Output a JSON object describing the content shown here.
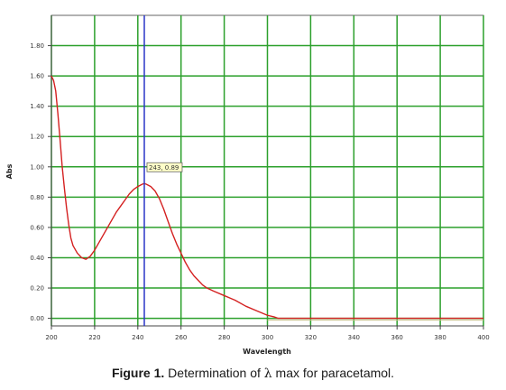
{
  "chart_data": {
    "type": "line",
    "xlabel": "Wavelength",
    "ylabel": "Abs",
    "xlim": [
      200,
      400
    ],
    "ylim": [
      -0.05,
      2.0
    ],
    "x_ticks": [
      "200",
      "220",
      "240",
      "260",
      "280",
      "300",
      "320",
      "340",
      "360",
      "380",
      "400"
    ],
    "y_ticks": [
      "0.00",
      "0.20",
      "0.40",
      "0.60",
      "0.80",
      "1.00",
      "1.20",
      "1.40",
      "1.60",
      "1.80"
    ],
    "grid": true,
    "marker_line_x": 243,
    "annotation": "243, 0.89",
    "series": [
      {
        "color": "#d42020",
        "points": [
          [
            200,
            1.6
          ],
          [
            201,
            1.57
          ],
          [
            202,
            1.5
          ],
          [
            203,
            1.35
          ],
          [
            204,
            1.18
          ],
          [
            205,
            1.0
          ],
          [
            206,
            0.86
          ],
          [
            207,
            0.73
          ],
          [
            208,
            0.62
          ],
          [
            209,
            0.53
          ],
          [
            210,
            0.48
          ],
          [
            212,
            0.43
          ],
          [
            214,
            0.4
          ],
          [
            216,
            0.39
          ],
          [
            218,
            0.41
          ],
          [
            220,
            0.45
          ],
          [
            222,
            0.5
          ],
          [
            224,
            0.55
          ],
          [
            226,
            0.6
          ],
          [
            228,
            0.65
          ],
          [
            230,
            0.7
          ],
          [
            232,
            0.74
          ],
          [
            234,
            0.78
          ],
          [
            236,
            0.82
          ],
          [
            238,
            0.85
          ],
          [
            240,
            0.87
          ],
          [
            242,
            0.885
          ],
          [
            243,
            0.89
          ],
          [
            244,
            0.885
          ],
          [
            246,
            0.87
          ],
          [
            248,
            0.84
          ],
          [
            250,
            0.79
          ],
          [
            252,
            0.72
          ],
          [
            254,
            0.64
          ],
          [
            256,
            0.56
          ],
          [
            258,
            0.49
          ],
          [
            260,
            0.43
          ],
          [
            262,
            0.37
          ],
          [
            264,
            0.32
          ],
          [
            266,
            0.28
          ],
          [
            268,
            0.25
          ],
          [
            270,
            0.22
          ],
          [
            272,
            0.2
          ],
          [
            275,
            0.18
          ],
          [
            280,
            0.15
          ],
          [
            285,
            0.12
          ],
          [
            290,
            0.08
          ],
          [
            295,
            0.05
          ],
          [
            300,
            0.02
          ],
          [
            303,
            0.01
          ],
          [
            305,
            0.0
          ],
          [
            320,
            0.0
          ],
          [
            340,
            0.0
          ],
          [
            360,
            0.0
          ],
          [
            380,
            0.0
          ],
          [
            400,
            0.0
          ]
        ]
      }
    ]
  },
  "caption": {
    "label": "Figure 1.",
    "text_before": " Determination of ",
    "lambda": "λ",
    "text_after": " max for paracetamol."
  },
  "colors": {
    "grid": "#2ca02c",
    "axis": "#444444",
    "marker_line": "#2a35c8",
    "annotation_bg": "#ffffc8",
    "baseline": "#c8c088"
  }
}
